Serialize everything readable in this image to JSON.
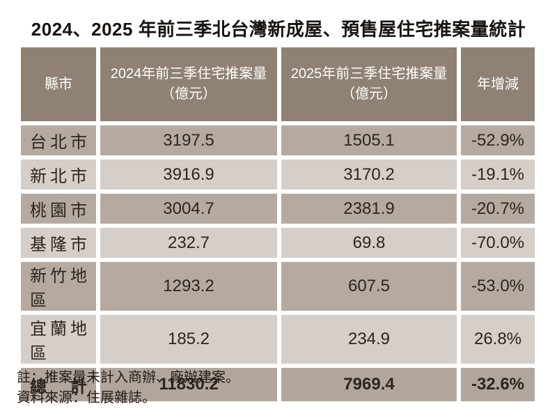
{
  "title": "2024、2025 年前三季北台灣新成屋、預售屋住宅推案量統計",
  "table": {
    "header": {
      "region": "縣市",
      "col2024": {
        "label": "2024年前三季住宅推案量",
        "unit": "（億元）"
      },
      "col2025": {
        "label": "2025年前三季住宅推案量",
        "unit": "（億元）"
      },
      "yoy": "年增減"
    },
    "rows": [
      {
        "region": "台北市",
        "v2024": "3197.5",
        "v2025": "1505.1",
        "yoy": "-52.9%"
      },
      {
        "region": "新北市",
        "v2024": "3916.9",
        "v2025": "3170.2",
        "yoy": "-19.1%"
      },
      {
        "region": "桃園市",
        "v2024": "3004.7",
        "v2025": "2381.9",
        "yoy": "-20.7%"
      },
      {
        "region": "基隆市",
        "v2024": "232.7",
        "v2025": "69.8",
        "yoy": "-70.0%"
      },
      {
        "region": "新竹地區",
        "v2024": "1293.2",
        "v2025": "607.5",
        "yoy": "-53.0%"
      },
      {
        "region": "宜蘭地區",
        "v2024": "185.2",
        "v2025": "234.9",
        "yoy": "26.8%"
      }
    ],
    "total": {
      "region": "總計",
      "v2024": "11830.2",
      "v2025": "7969.4",
      "yoy": "-32.6%"
    }
  },
  "notes": {
    "note1": "註：推案量未計入商辦、廠辦建案。",
    "note2": "資料來源：住展雜誌。"
  },
  "colors": {
    "header_bg": "#8f8173",
    "row_dark_bg": "#b6aaa0",
    "row_light_bg": "#d6cec8",
    "total_row_bg": "#b2a69c",
    "header_text": "#ffffff",
    "body_text": "#2b2520",
    "page_bg": "#ffffff"
  },
  "chart_data": {
    "type": "table",
    "title": "2024、2025 年前三季北台灣新成屋、預售屋住宅推案量統計",
    "columns": [
      "縣市",
      "2024年前三季住宅推案量（億元）",
      "2025年前三季住宅推案量（億元）",
      "年增減"
    ],
    "rows": [
      [
        "台北市",
        3197.5,
        1505.1,
        "-52.9%"
      ],
      [
        "新北市",
        3916.9,
        3170.2,
        "-19.1%"
      ],
      [
        "桃園市",
        3004.7,
        2381.9,
        "-20.7%"
      ],
      [
        "基隆市",
        232.7,
        69.8,
        "-70.0%"
      ],
      [
        "新竹地區",
        1293.2,
        607.5,
        "-53.0%"
      ],
      [
        "宜蘭地區",
        185.2,
        234.9,
        "26.8%"
      ],
      [
        "總計",
        11830.2,
        7969.4,
        "-32.6%"
      ]
    ],
    "notes": [
      "註：推案量未計入商辦、廠辦建案。",
      "資料來源：住展雜誌。"
    ]
  }
}
